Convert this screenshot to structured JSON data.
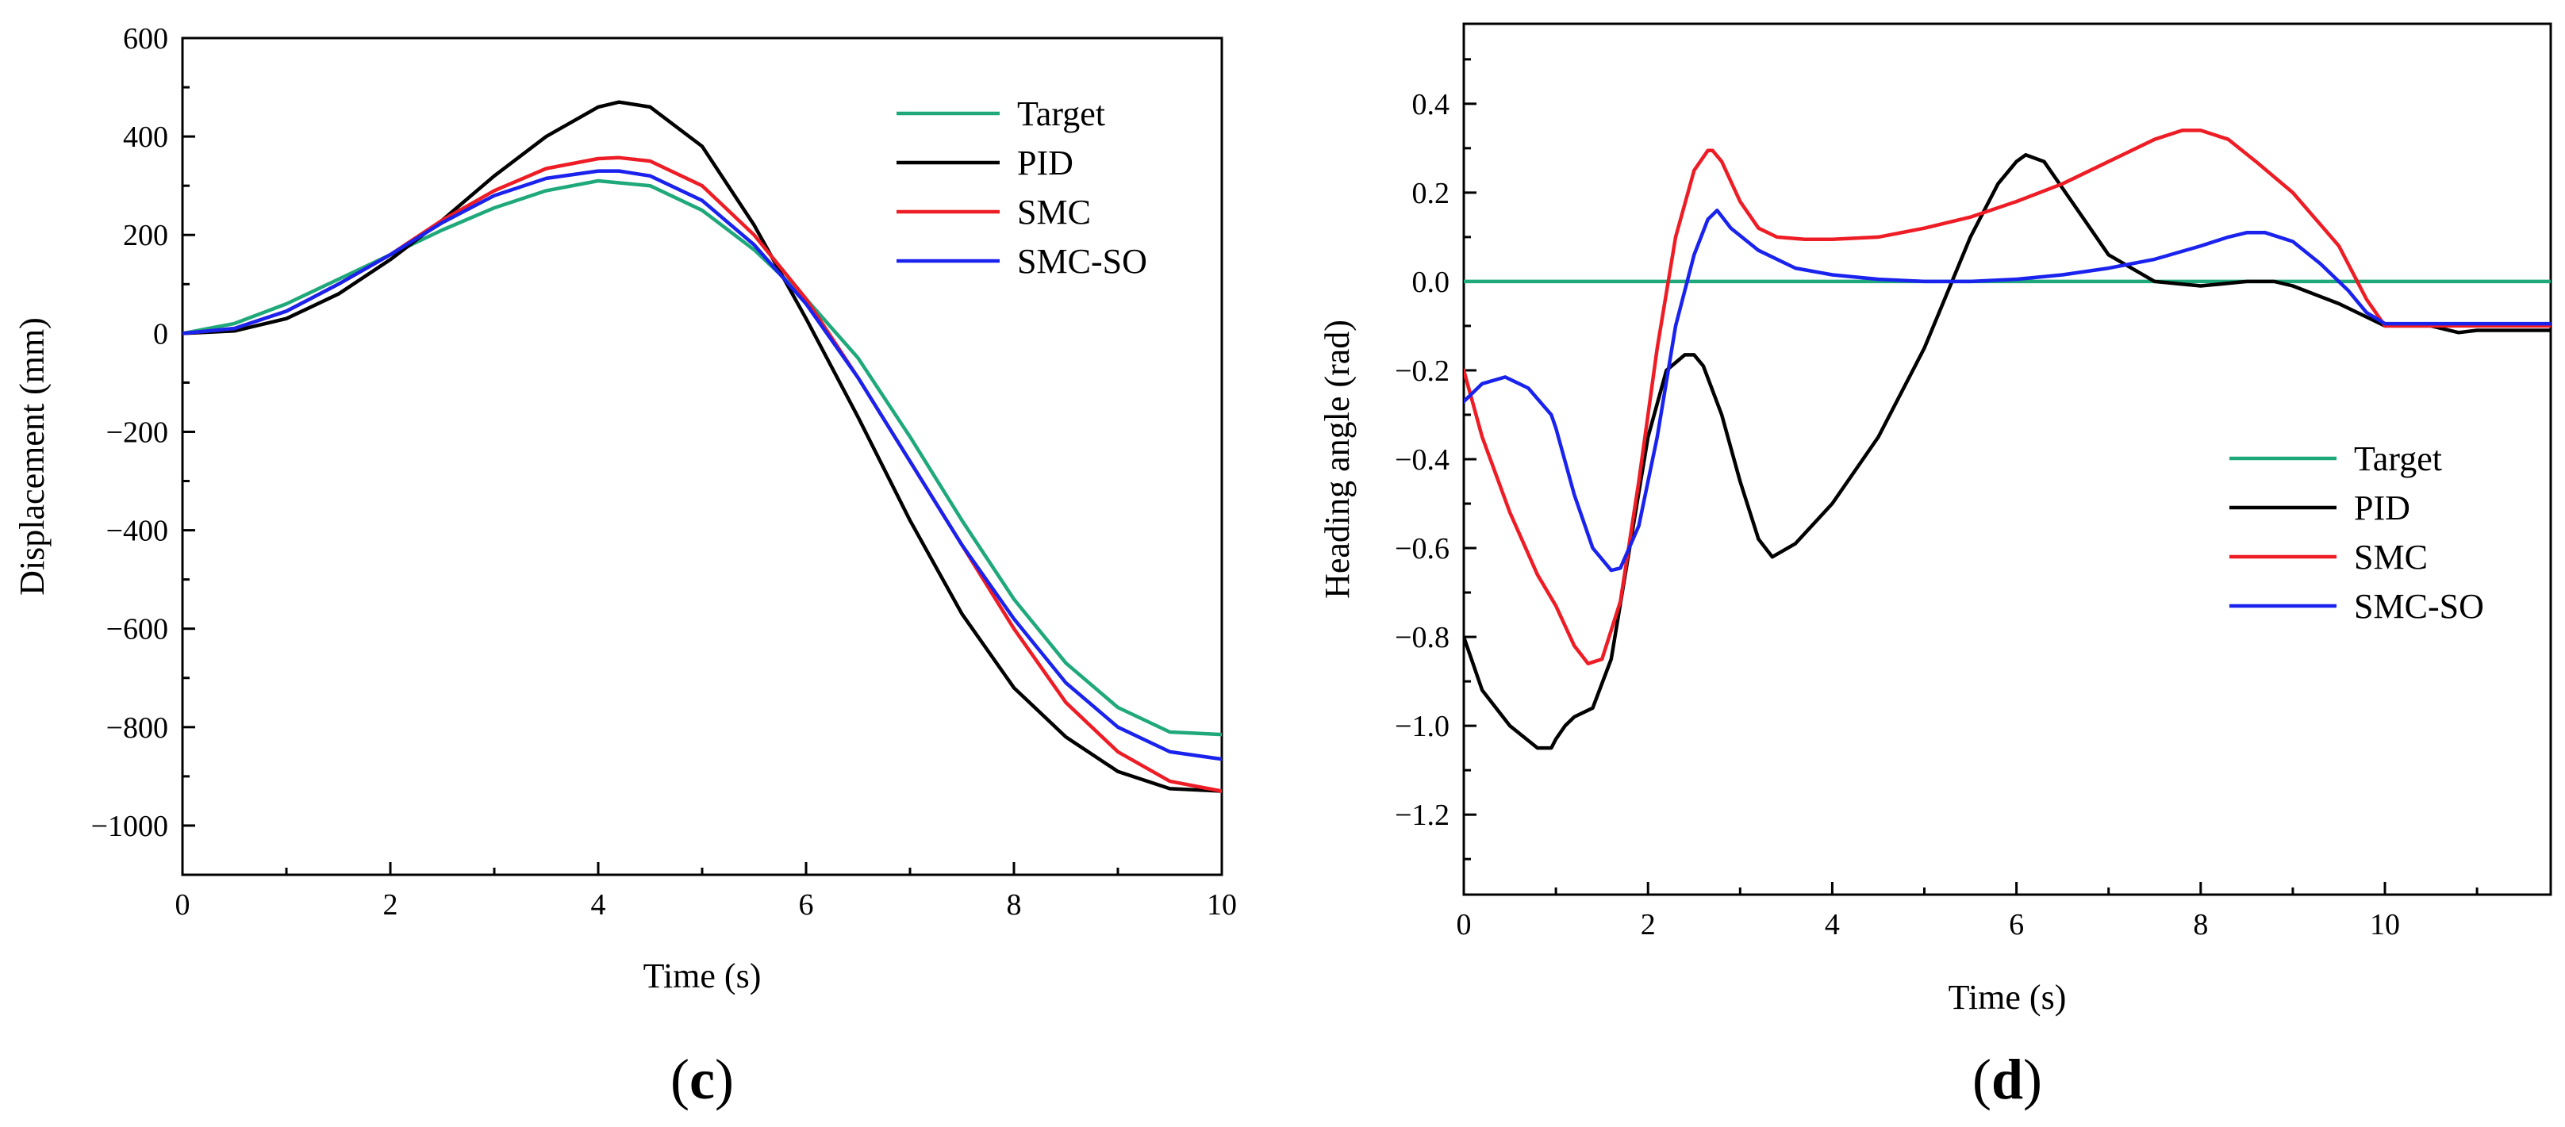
{
  "chart_data": [
    {
      "type": "line",
      "panel_label": "(c)",
      "xlabel": "Time (s)",
      "ylabel": "Displacement (mm)",
      "xlim": [
        0,
        10
      ],
      "ylim": [
        -1100,
        600
      ],
      "xticks": [
        0,
        2,
        4,
        6,
        8,
        10
      ],
      "yticks": [
        600,
        400,
        200,
        0,
        -200,
        -400,
        -600,
        -800,
        -1000
      ],
      "ytick_labels": [
        "600",
        "400",
        "200",
        "0",
        "−200",
        "−400",
        "−600",
        "−800",
        "−1000"
      ],
      "legend_position": "top-right",
      "grid": false,
      "series": [
        {
          "name": "Target",
          "color": "#1fa97a",
          "x": [
            0,
            0.5,
            1,
            1.5,
            2,
            2.5,
            3,
            3.5,
            4,
            4.5,
            5,
            5.5,
            6,
            6.5,
            7,
            7.5,
            8,
            8.5,
            9,
            9.5,
            10
          ],
          "y": [
            0,
            20,
            60,
            110,
            160,
            210,
            255,
            290,
            310,
            300,
            250,
            170,
            70,
            -50,
            -210,
            -380,
            -540,
            -670,
            -760,
            -810,
            -815
          ]
        },
        {
          "name": "PID",
          "color": "#000000",
          "x": [
            0,
            0.5,
            1,
            1.5,
            2,
            2.5,
            3,
            3.5,
            4,
            4.2,
            4.5,
            5,
            5.5,
            6,
            6.5,
            7,
            7.5,
            8,
            8.5,
            9,
            9.5,
            10
          ],
          "y": [
            0,
            5,
            30,
            80,
            150,
            230,
            320,
            400,
            460,
            470,
            460,
            380,
            220,
            30,
            -170,
            -380,
            -570,
            -720,
            -820,
            -890,
            -925,
            -930
          ]
        },
        {
          "name": "SMC",
          "color": "#ee1c25",
          "x": [
            0,
            0.5,
            1,
            1.5,
            2,
            2.5,
            3,
            3.5,
            4,
            4.2,
            4.5,
            5,
            5.5,
            6,
            6.5,
            7,
            7.5,
            8,
            8.5,
            9,
            9.5,
            10
          ],
          "y": [
            0,
            10,
            45,
            100,
            160,
            230,
            290,
            335,
            355,
            357,
            350,
            300,
            200,
            70,
            -90,
            -260,
            -430,
            -600,
            -750,
            -850,
            -910,
            -930
          ]
        },
        {
          "name": "SMC-SO",
          "color": "#1a22ee",
          "x": [
            0,
            0.5,
            1,
            1.5,
            2,
            2.5,
            3,
            3.5,
            4,
            4.2,
            4.5,
            5,
            5.5,
            6,
            6.5,
            7,
            7.5,
            8,
            8.5,
            9,
            9.5,
            10
          ],
          "y": [
            0,
            10,
            45,
            100,
            160,
            225,
            280,
            315,
            330,
            330,
            320,
            270,
            180,
            60,
            -90,
            -260,
            -430,
            -580,
            -710,
            -800,
            -850,
            -865
          ]
        }
      ]
    },
    {
      "type": "line",
      "panel_label": "(d)",
      "xlabel": "Time (s)",
      "ylabel": "Heading angle (rad)",
      "xlim": [
        0,
        11.8
      ],
      "ylim": [
        -1.38,
        0.58
      ],
      "xticks": [
        0,
        2,
        4,
        6,
        8,
        10
      ],
      "yticks": [
        0.4,
        0.2,
        0.0,
        -0.2,
        -0.4,
        -0.6,
        -0.8,
        -1.0,
        -1.2
      ],
      "ytick_labels": [
        "0.4",
        "0.2",
        "0.0",
        "−0.2",
        "−0.4",
        "−0.6",
        "−0.8",
        "−1.0",
        "−1.2"
      ],
      "legend_position": "center-right",
      "grid": false,
      "series": [
        {
          "name": "Target",
          "color": "#1fa97a",
          "x": [
            0,
            11.8
          ],
          "y": [
            0,
            0
          ]
        },
        {
          "name": "PID",
          "color": "#000000",
          "x": [
            0,
            0.2,
            0.5,
            0.8,
            0.95,
            1.0,
            1.1,
            1.2,
            1.4,
            1.6,
            1.8,
            2.0,
            2.2,
            2.4,
            2.5,
            2.6,
            2.8,
            3.0,
            3.2,
            3.35,
            3.6,
            4.0,
            4.5,
            5.0,
            5.5,
            5.8,
            6.0,
            6.1,
            6.3,
            6.6,
            7.0,
            7.5,
            8.0,
            8.5,
            8.8,
            9.0,
            9.5,
            10.0,
            10.5,
            10.8,
            11.0,
            11.8
          ],
          "y": [
            -0.8,
            -0.92,
            -1.0,
            -1.05,
            -1.05,
            -1.03,
            -1.0,
            -0.98,
            -0.96,
            -0.85,
            -0.6,
            -0.35,
            -0.2,
            -0.165,
            -0.165,
            -0.19,
            -0.3,
            -0.45,
            -0.58,
            -0.62,
            -0.59,
            -0.5,
            -0.35,
            -0.15,
            0.1,
            0.22,
            0.27,
            0.285,
            0.27,
            0.18,
            0.06,
            0.0,
            -0.01,
            0.0,
            0.0,
            -0.01,
            -0.05,
            -0.1,
            -0.1,
            -0.115,
            -0.11,
            -0.11
          ]
        },
        {
          "name": "SMC",
          "color": "#ee1c25",
          "x": [
            0,
            0.2,
            0.5,
            0.8,
            1.0,
            1.2,
            1.35,
            1.5,
            1.7,
            1.9,
            2.1,
            2.3,
            2.5,
            2.65,
            2.7,
            2.8,
            3.0,
            3.2,
            3.4,
            3.7,
            4.0,
            4.5,
            5.0,
            5.5,
            6.0,
            6.5,
            7.0,
            7.5,
            7.8,
            8.0,
            8.3,
            8.6,
            9.0,
            9.5,
            9.8,
            10.0,
            10.5,
            11.0,
            11.8
          ],
          "y": [
            -0.2,
            -0.35,
            -0.52,
            -0.66,
            -0.73,
            -0.82,
            -0.86,
            -0.85,
            -0.72,
            -0.45,
            -0.15,
            0.1,
            0.25,
            0.295,
            0.295,
            0.27,
            0.18,
            0.12,
            0.1,
            0.095,
            0.095,
            0.1,
            0.12,
            0.145,
            0.18,
            0.22,
            0.27,
            0.32,
            0.34,
            0.34,
            0.32,
            0.27,
            0.2,
            0.08,
            -0.04,
            -0.1,
            -0.1,
            -0.1,
            -0.1
          ]
        },
        {
          "name": "SMC-SO",
          "color": "#1a22ee",
          "x": [
            0,
            0.2,
            0.45,
            0.7,
            0.95,
            1.0,
            1.2,
            1.4,
            1.6,
            1.7,
            1.9,
            2.1,
            2.3,
            2.5,
            2.65,
            2.75,
            2.9,
            3.2,
            3.6,
            4.0,
            4.5,
            5.0,
            5.5,
            6.0,
            6.5,
            7.0,
            7.5,
            8.0,
            8.3,
            8.5,
            8.7,
            9.0,
            9.3,
            9.6,
            9.8,
            10.0,
            10.5,
            11.0,
            11.8
          ],
          "y": [
            -0.27,
            -0.23,
            -0.215,
            -0.24,
            -0.3,
            -0.33,
            -0.48,
            -0.6,
            -0.65,
            -0.645,
            -0.55,
            -0.35,
            -0.1,
            0.06,
            0.14,
            0.16,
            0.12,
            0.07,
            0.03,
            0.015,
            0.005,
            0.0,
            0.0,
            0.005,
            0.015,
            0.03,
            0.05,
            0.08,
            0.1,
            0.11,
            0.11,
            0.09,
            0.04,
            -0.02,
            -0.07,
            -0.095,
            -0.095,
            -0.095,
            -0.095
          ]
        }
      ]
    }
  ]
}
